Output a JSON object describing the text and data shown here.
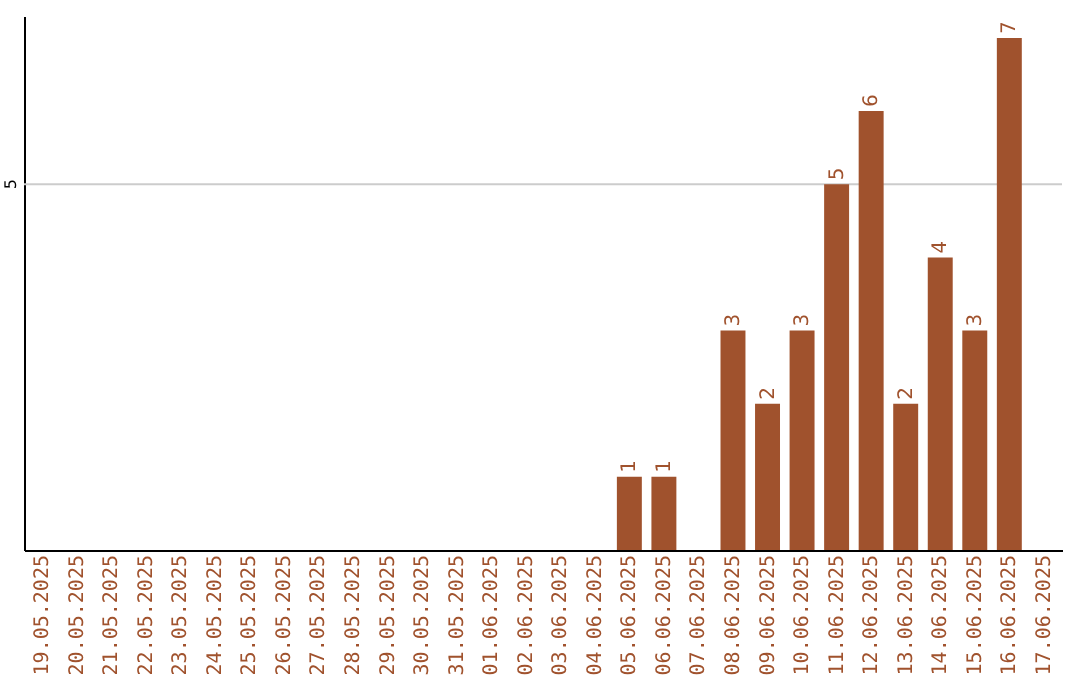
{
  "chart_data": {
    "type": "bar",
    "ylim": [
      0,
      7.3
    ],
    "categories": [
      "19.05.2025",
      "20.05.2025",
      "21.05.2025",
      "22.05.2025",
      "23.05.2025",
      "24.05.2025",
      "25.05.2025",
      "26.05.2025",
      "27.05.2025",
      "28.05.2025",
      "29.05.2025",
      "30.05.2025",
      "31.05.2025",
      "01.06.2025",
      "02.06.2025",
      "03.06.2025",
      "04.06.2025",
      "05.06.2025",
      "06.06.2025",
      "07.06.2025",
      "08.06.2025",
      "09.06.2025",
      "10.06.2025",
      "11.06.2025",
      "12.06.2025",
      "13.06.2025",
      "14.06.2025",
      "15.06.2025",
      "16.06.2025",
      "17.06.2025"
    ],
    "values": [
      null,
      null,
      null,
      null,
      null,
      null,
      null,
      null,
      null,
      null,
      null,
      null,
      null,
      null,
      null,
      null,
      null,
      1,
      1,
      null,
      3,
      2,
      3,
      5,
      6,
      2,
      4,
      3,
      7,
      null
    ],
    "value_labels": [
      null,
      null,
      null,
      null,
      null,
      null,
      null,
      null,
      null,
      null,
      null,
      null,
      null,
      null,
      null,
      null,
      null,
      "1",
      "1",
      null,
      "3",
      "2",
      "3",
      "5",
      "6",
      "2",
      "4",
      "3",
      "7",
      null
    ],
    "color": "#a0522d",
    "ref_lines": [
      {
        "axis": "y",
        "value": 5,
        "label": "5",
        "color": "#cccccc"
      }
    ]
  }
}
